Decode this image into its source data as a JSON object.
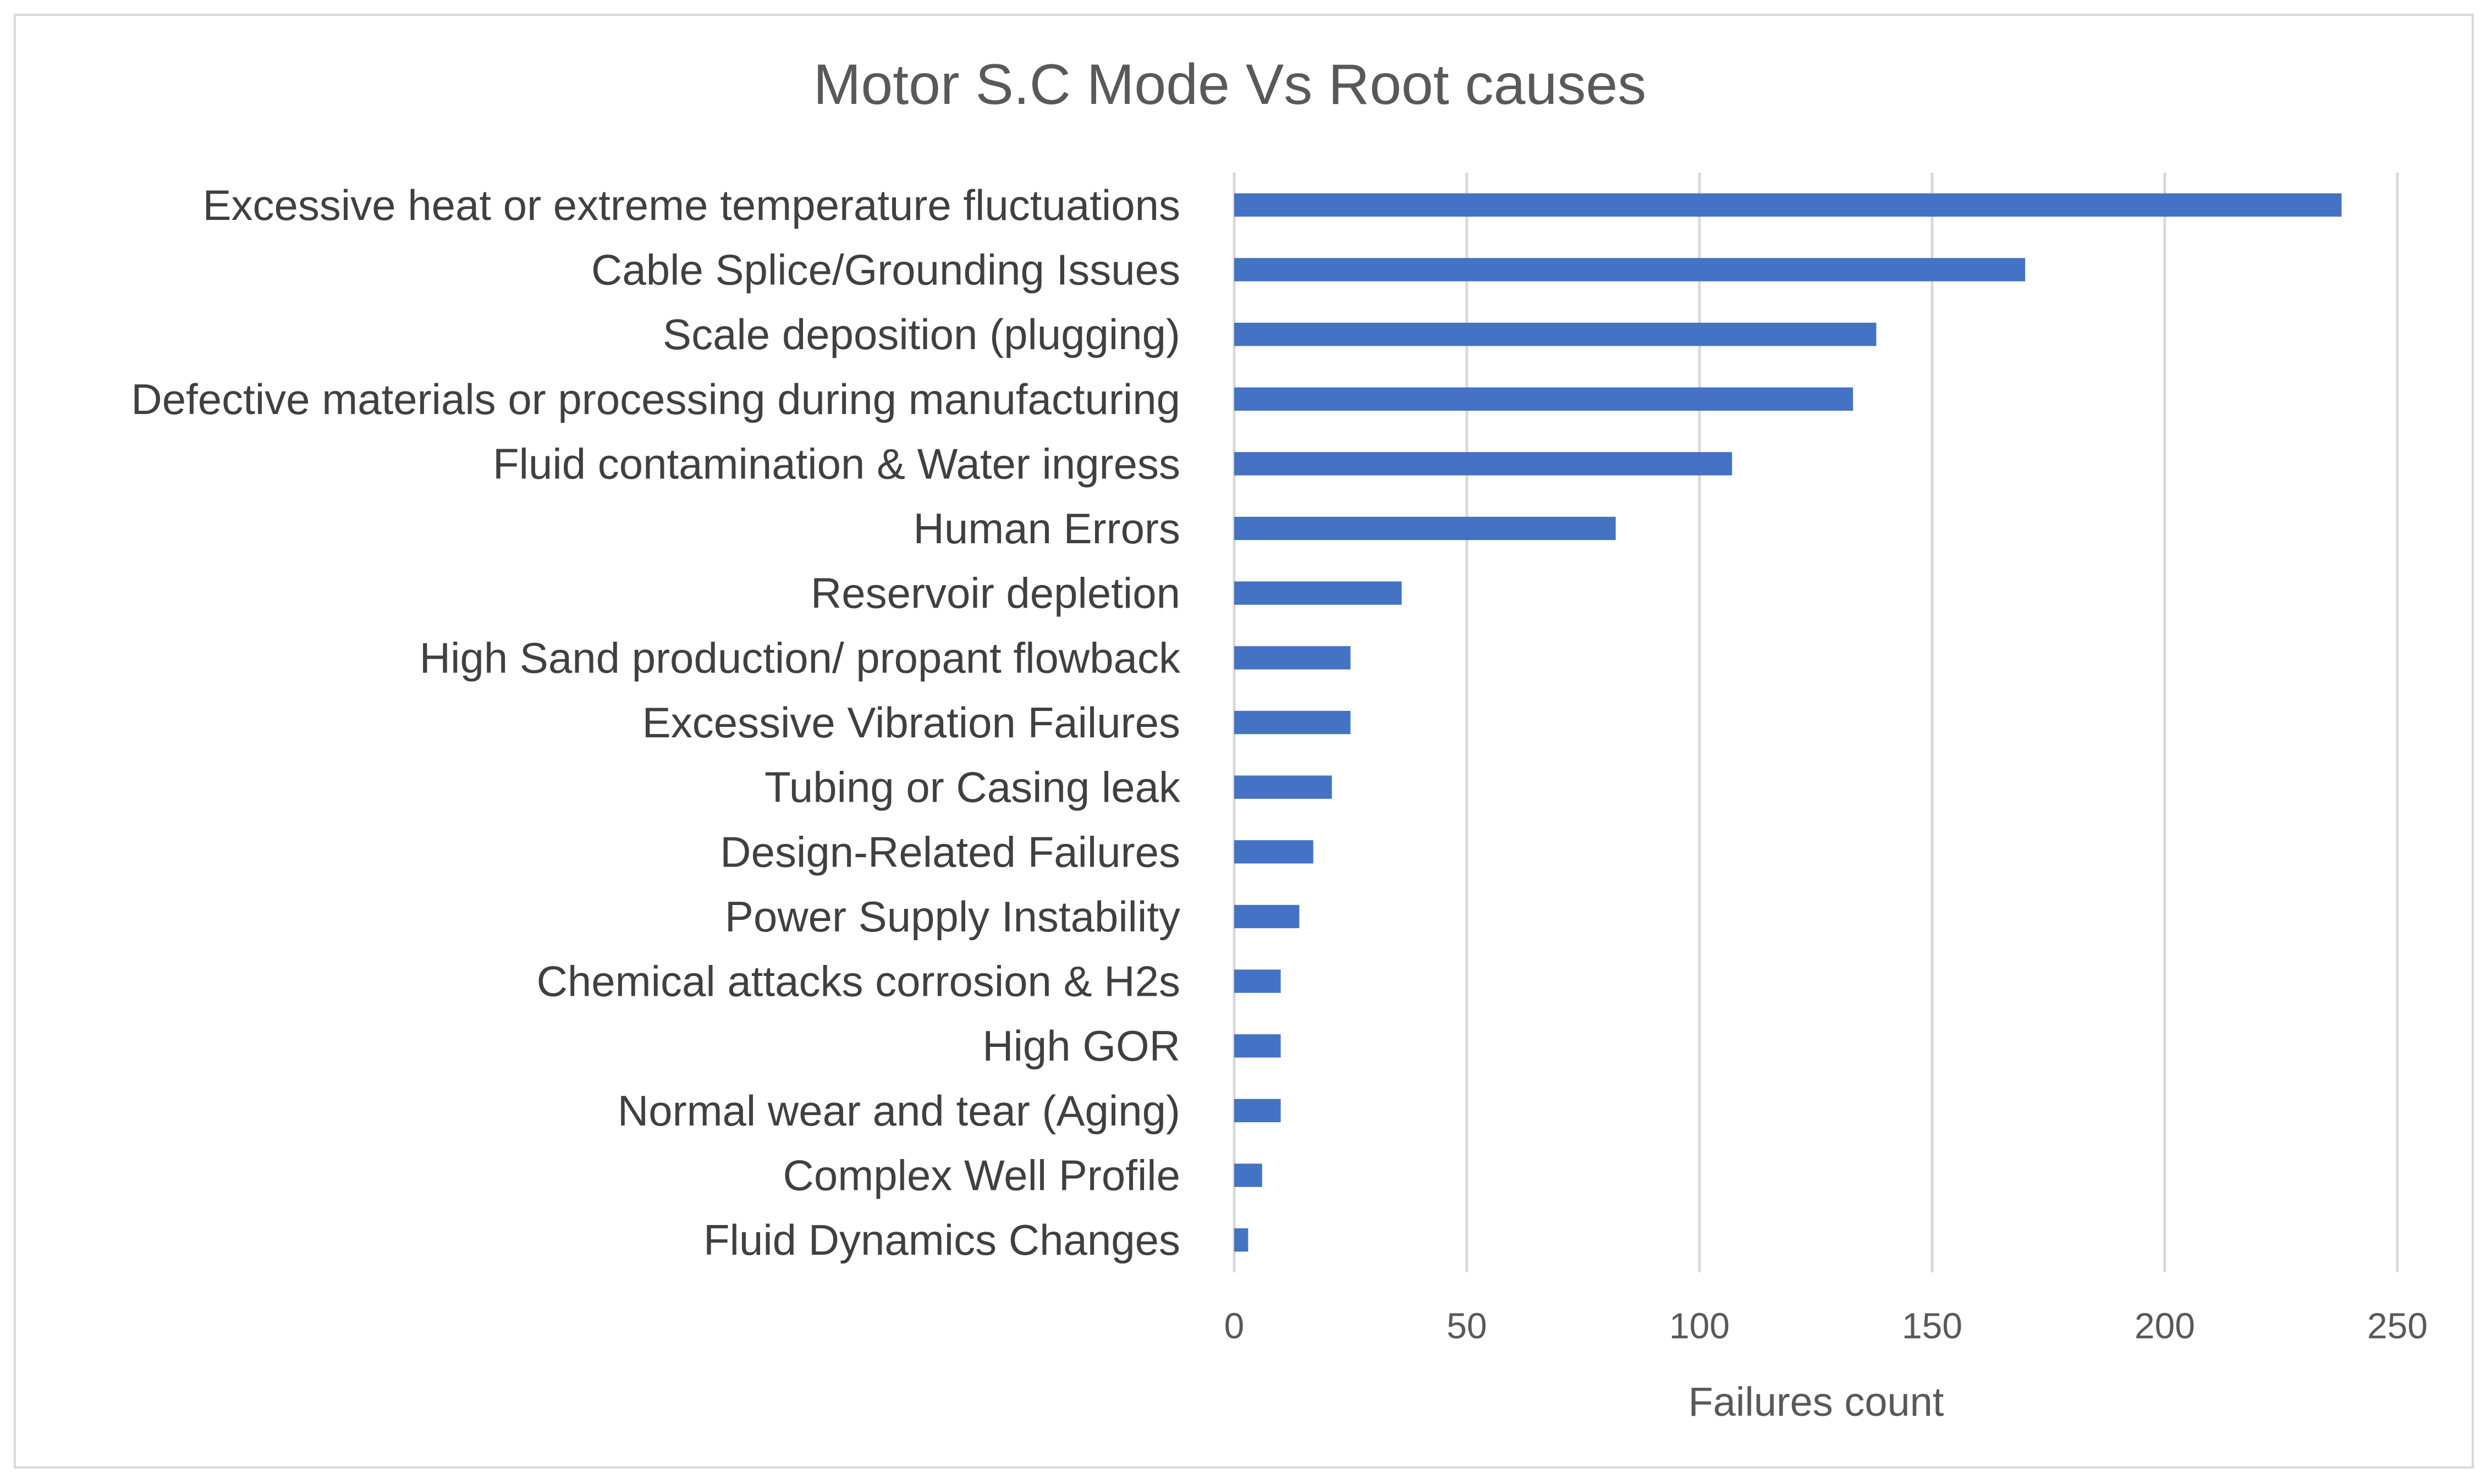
{
  "chart_data": {
    "type": "bar",
    "orientation": "horizontal",
    "title": "Motor S.C Mode Vs Root causes",
    "xlabel": "Failures count",
    "ylabel": "",
    "xlim": [
      0,
      250
    ],
    "xticks": [
      0,
      50,
      100,
      150,
      200,
      250
    ],
    "grid": true,
    "legend": "none",
    "bar_color": "#4472c4",
    "categories": [
      "Excessive heat or extreme temperature fluctuations",
      "Cable Splice/Grounding Issues",
      "Scale deposition (plugging)",
      "Defective materials or processing during manufacturing",
      "Fluid contamination & Water ingress",
      "Human Errors",
      "Reservoir depletion",
      "High Sand production/ propant flowback",
      "Excessive Vibration Failures",
      "Tubing or Casing leak",
      "Design-Related Failures",
      "Power Supply Instability",
      "Chemical attacks corrosion & H2s",
      "High GOR",
      "Normal wear and tear (Aging)",
      "Complex Well Profile",
      "Fluid Dynamics Changes"
    ],
    "values": [
      238,
      170,
      138,
      133,
      107,
      82,
      36,
      25,
      25,
      21,
      17,
      14,
      10,
      10,
      10,
      6,
      3
    ]
  }
}
